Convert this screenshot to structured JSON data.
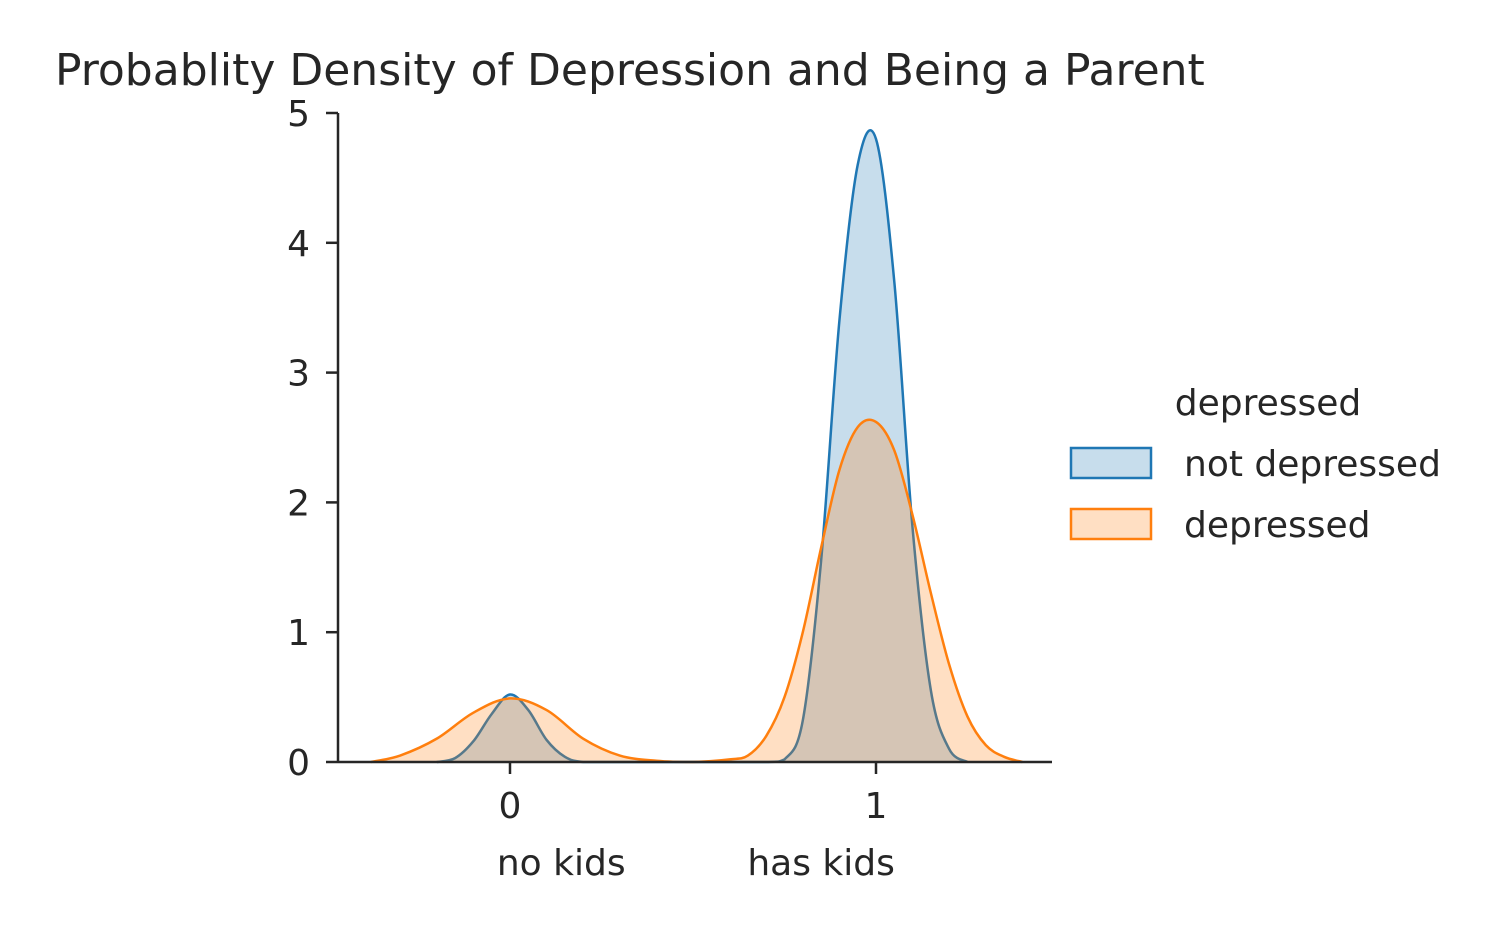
{
  "chart_data": {
    "type": "area",
    "title": "Probablity Density of Depression and Being a Parent",
    "xlabel": "",
    "ylabel": "",
    "x_tick_values": [
      0,
      1
    ],
    "x_tick_labels": [
      "0",
      "1"
    ],
    "x_category_labels": [
      {
        "label": "no kids",
        "x": 0.14
      },
      {
        "label": "has kids",
        "x": 0.85
      }
    ],
    "xlim": [
      -0.45,
      1.45
    ],
    "ylim": [
      0,
      5
    ],
    "y_ticks": [
      0,
      1,
      2,
      3,
      4,
      5
    ],
    "grid": false,
    "legend": {
      "title": "depressed",
      "placement": "right"
    },
    "series": [
      {
        "name": "not depressed",
        "color": "#1f77b4",
        "x": [
          -0.2,
          -0.15,
          -0.1,
          -0.05,
          0.0,
          0.05,
          0.1,
          0.15,
          0.2,
          0.3,
          0.5,
          0.7,
          0.75,
          0.8,
          0.85,
          0.9,
          0.95,
          1.0,
          1.05,
          1.1,
          1.15,
          1.2,
          1.25
        ],
        "y": [
          0.0,
          0.03,
          0.16,
          0.37,
          0.52,
          0.4,
          0.17,
          0.04,
          0.0,
          0.0,
          0.0,
          0.0,
          0.02,
          0.32,
          1.55,
          3.4,
          4.6,
          4.8,
          3.7,
          1.8,
          0.55,
          0.1,
          0.0
        ]
      },
      {
        "name": "depressed",
        "color": "#ff7f0e",
        "x": [
          -0.38,
          -0.3,
          -0.2,
          -0.1,
          0.0,
          0.1,
          0.2,
          0.3,
          0.4,
          0.5,
          0.6,
          0.65,
          0.7,
          0.75,
          0.8,
          0.85,
          0.9,
          0.95,
          1.0,
          1.05,
          1.1,
          1.15,
          1.2,
          1.25,
          1.3,
          1.35,
          1.4
        ],
        "y": [
          0.0,
          0.05,
          0.18,
          0.38,
          0.49,
          0.4,
          0.18,
          0.05,
          0.01,
          0.0,
          0.02,
          0.05,
          0.2,
          0.5,
          1.0,
          1.65,
          2.25,
          2.58,
          2.62,
          2.4,
          1.9,
          1.3,
          0.75,
          0.35,
          0.13,
          0.04,
          0.0
        ]
      }
    ]
  }
}
